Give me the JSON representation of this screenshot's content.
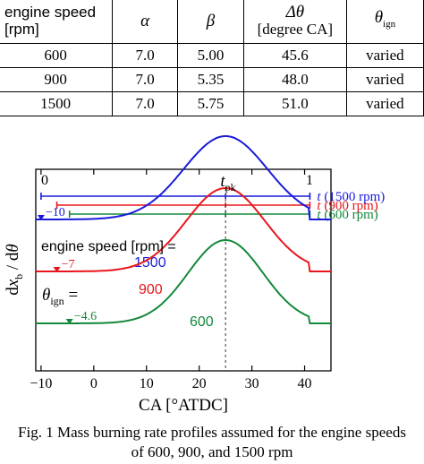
{
  "table": {
    "headers": {
      "speed_line1": "engine speed",
      "speed_line2": "[rpm]",
      "alpha": "α",
      "beta": "β",
      "delta_theta": "Δθ",
      "delta_theta_unit": "[degree CA]",
      "theta": "θ",
      "theta_sub": "ign"
    },
    "rows": [
      [
        "600",
        "7.0",
        "5.00",
        "45.6",
        "varied"
      ],
      [
        "900",
        "7.0",
        "5.35",
        "48.0",
        "varied"
      ],
      [
        "1500",
        "7.0",
        "5.75",
        "51.0",
        "varied"
      ]
    ]
  },
  "chart_data": {
    "type": "line",
    "xlabel": "CA [°ATDC]",
    "ylabel": "dx_b / dθ",
    "xlim": [
      -11,
      45
    ],
    "x_ticks": [
      -10,
      0,
      10,
      20,
      30,
      40
    ],
    "y_ticks_labeled": false,
    "grid": false,
    "series": [
      {
        "name": "1500",
        "color": "#1a1adb",
        "theta_ign": -10,
        "end": 41,
        "peak": 25,
        "offset": 2.0,
        "amplitude": 1.0,
        "alpha": 7.0,
        "beta": 5.75
      },
      {
        "name": "900",
        "color": "#e8161c",
        "theta_ign": -7,
        "end": 41,
        "peak": 25,
        "offset": 1.6,
        "amplitude": 1.0,
        "alpha": 7.0,
        "beta": 5.35
      },
      {
        "name": "600",
        "color": "#13883b",
        "theta_ign": -4.6,
        "end": 41,
        "peak": 25,
        "offset": 1.2,
        "amplitude": 1.0,
        "alpha": 7.0,
        "beta": 5.0
      }
    ],
    "bracket_labels": [
      {
        "text": "t",
        "suffix": "(1500 rpm)",
        "color": "#1a1adb"
      },
      {
        "text": "t",
        "suffix": "(900 rpm)",
        "color": "#e8161c"
      },
      {
        "text": "t",
        "suffix": "(600 rpm)",
        "color": "#13883b"
      }
    ],
    "t_zero_label": "0",
    "t_one_label": "1",
    "t_peak_label": "t",
    "t_peak_sub": "pk",
    "speed_label": "engine speed [rpm] =",
    "theta_ign_label": "θ",
    "theta_ign_sub": "ign",
    "theta_ign_eq": " =",
    "ign_value_labels": [
      "−10",
      "−7",
      "−4.6"
    ]
  },
  "caption": {
    "line1": "Fig. 1  Mass burning rate profiles assumed for the engine speeds",
    "line2": "of 600, 900, and 1500 rpm"
  }
}
